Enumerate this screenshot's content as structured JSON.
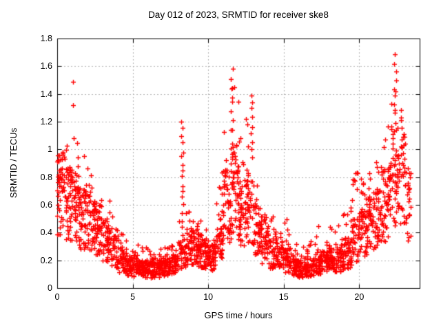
{
  "chart_data": {
    "type": "scatter",
    "title": "Day 012 of 2023, SRMTID for receiver ske8",
    "xlabel": "GPS time / hours",
    "ylabel": "SRMTID / TECUs",
    "xlim": [
      0,
      24
    ],
    "ylim": [
      0,
      1.8
    ],
    "xticks": [
      {
        "v": 0,
        "label": "0"
      },
      {
        "v": 5,
        "label": "5"
      },
      {
        "v": 10,
        "label": "10"
      },
      {
        "v": 15,
        "label": "15"
      },
      {
        "v": 20,
        "label": "20"
      }
    ],
    "yticks": [
      {
        "v": 0.0,
        "label": "0"
      },
      {
        "v": 0.2,
        "label": "0.2"
      },
      {
        "v": 0.4,
        "label": "0.4"
      },
      {
        "v": 0.6,
        "label": "0.6"
      },
      {
        "v": 0.8,
        "label": "0.8"
      },
      {
        "v": 1.0,
        "label": "1"
      },
      {
        "v": 1.2,
        "label": "1.2"
      },
      {
        "v": 1.4,
        "label": "1.4"
      },
      {
        "v": 1.6,
        "label": "1.6"
      },
      {
        "v": 1.8,
        "label": "1.8"
      }
    ],
    "grid": true,
    "legend_position": "none",
    "marker": "plus",
    "marker_color": "#ff0000",
    "grid_color": "#b4b4b4",
    "axis_color": "#000000",
    "background_color": "#ffffff",
    "data_start_hour": 0.0,
    "data_end_hour": 23.4,
    "density_bins": [
      [
        0.0,
        0.5,
        55,
        0.38,
        0.7,
        1.05
      ],
      [
        0.5,
        1.0,
        50,
        0.3,
        0.62,
        1.05
      ],
      [
        1.0,
        1.5,
        50,
        0.28,
        0.55,
        1.2
      ],
      [
        1.5,
        2.0,
        45,
        0.25,
        0.5,
        1.0
      ],
      [
        2.0,
        2.5,
        50,
        0.15,
        0.48,
        0.88
      ],
      [
        2.5,
        3.0,
        45,
        0.12,
        0.42,
        0.75
      ],
      [
        3.0,
        3.5,
        45,
        0.12,
        0.35,
        0.65
      ],
      [
        3.5,
        4.0,
        40,
        0.1,
        0.27,
        0.6
      ],
      [
        4.0,
        4.5,
        40,
        0.08,
        0.2,
        0.45
      ],
      [
        4.5,
        5.0,
        45,
        0.06,
        0.16,
        0.38
      ],
      [
        5.0,
        5.5,
        45,
        0.05,
        0.15,
        0.32
      ],
      [
        5.5,
        6.0,
        48,
        0.05,
        0.14,
        0.3
      ],
      [
        6.0,
        6.5,
        48,
        0.05,
        0.13,
        0.28
      ],
      [
        6.5,
        7.0,
        48,
        0.05,
        0.14,
        0.3
      ],
      [
        7.0,
        7.5,
        48,
        0.06,
        0.15,
        0.3
      ],
      [
        7.5,
        8.0,
        45,
        0.08,
        0.17,
        0.35
      ],
      [
        8.0,
        8.5,
        30,
        0.1,
        0.25,
        0.6
      ],
      [
        8.5,
        9.0,
        50,
        0.15,
        0.3,
        0.55
      ],
      [
        9.0,
        9.5,
        52,
        0.15,
        0.28,
        0.5
      ],
      [
        9.5,
        10.0,
        52,
        0.12,
        0.25,
        0.45
      ],
      [
        10.0,
        10.5,
        48,
        0.1,
        0.22,
        0.4
      ],
      [
        10.5,
        11.0,
        45,
        0.15,
        0.35,
        0.9
      ],
      [
        11.0,
        11.5,
        48,
        0.3,
        0.6,
        1.3
      ],
      [
        11.5,
        12.0,
        50,
        0.35,
        0.72,
        1.45
      ],
      [
        12.0,
        12.5,
        50,
        0.3,
        0.55,
        1.1
      ],
      [
        12.5,
        13.0,
        45,
        0.3,
        0.58,
        1.3
      ],
      [
        13.0,
        13.5,
        45,
        0.2,
        0.42,
        0.8
      ],
      [
        13.5,
        14.0,
        42,
        0.15,
        0.32,
        0.65
      ],
      [
        14.0,
        14.5,
        42,
        0.1,
        0.26,
        0.55
      ],
      [
        14.5,
        15.0,
        42,
        0.1,
        0.26,
        0.55
      ],
      [
        15.0,
        15.5,
        42,
        0.06,
        0.2,
        0.5
      ],
      [
        15.5,
        16.0,
        45,
        0.05,
        0.15,
        0.35
      ],
      [
        16.0,
        16.5,
        45,
        0.05,
        0.13,
        0.3
      ],
      [
        16.5,
        17.0,
        45,
        0.05,
        0.15,
        0.35
      ],
      [
        17.0,
        17.5,
        45,
        0.08,
        0.18,
        0.45
      ],
      [
        17.5,
        18.0,
        45,
        0.08,
        0.2,
        0.5
      ],
      [
        18.0,
        18.5,
        45,
        0.08,
        0.2,
        0.5
      ],
      [
        18.5,
        19.0,
        45,
        0.1,
        0.22,
        0.55
      ],
      [
        19.0,
        19.5,
        45,
        0.1,
        0.25,
        0.6
      ],
      [
        19.5,
        20.0,
        45,
        0.15,
        0.35,
        0.85
      ],
      [
        20.0,
        20.5,
        45,
        0.18,
        0.4,
        0.8
      ],
      [
        20.5,
        21.0,
        45,
        0.2,
        0.45,
        0.9
      ],
      [
        21.0,
        21.5,
        45,
        0.25,
        0.5,
        1.0
      ],
      [
        21.5,
        22.0,
        48,
        0.28,
        0.6,
        1.2
      ],
      [
        22.0,
        22.5,
        48,
        0.3,
        0.8,
        1.45
      ],
      [
        22.5,
        23.0,
        45,
        0.3,
        0.8,
        1.35
      ],
      [
        23.0,
        23.4,
        30,
        0.25,
        0.6,
        1.2
      ]
    ],
    "spike_columns": [
      {
        "x": 8.28,
        "ymin": 0.25,
        "ymax": 1.19,
        "n": 20
      },
      {
        "x": 11.58,
        "ymin": 0.9,
        "ymax": 1.59,
        "n": 10
      },
      {
        "x": 12.87,
        "ymin": 0.95,
        "ymax": 1.4,
        "n": 9
      },
      {
        "x": 22.37,
        "ymin": 1.2,
        "ymax": 1.68,
        "n": 9
      }
    ],
    "outlier_points": [
      [
        1.05,
        1.49
      ],
      [
        1.05,
        1.32
      ]
    ]
  }
}
